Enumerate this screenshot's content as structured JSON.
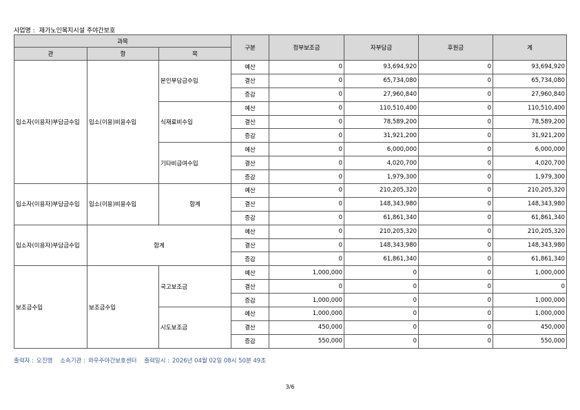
{
  "header": {
    "label": "사업명 :",
    "name": "재가노인복지시설 주야간보호"
  },
  "table": {
    "columns": {
      "subject": "과목",
      "gwan": "관",
      "hang": "항",
      "mok": "목",
      "type": "구분",
      "gov": "정부보조금",
      "self": "자부담금",
      "support": "후원금",
      "total": "계"
    },
    "blocks": [
      {
        "gwan": "입소자(이용자)부담금수입",
        "hang": "입소(이용)비용수입",
        "items": [
          {
            "mok": "본인부담금수입",
            "rows": [
              [
                "예산",
                "0",
                "93,694,920",
                "0",
                "93,694,920"
              ],
              [
                "결산",
                "0",
                "65,734,080",
                "0",
                "65,734,080"
              ],
              [
                "증감",
                "0",
                "27,960,840",
                "0",
                "27,960,840"
              ]
            ]
          },
          {
            "mok": "식재료비수입",
            "rows": [
              [
                "예산",
                "0",
                "110,510,400",
                "0",
                "110,510,400"
              ],
              [
                "결산",
                "0",
                "78,589,200",
                "0",
                "78,589,200"
              ],
              [
                "증감",
                "0",
                "31,921,200",
                "0",
                "31,921,200"
              ]
            ]
          },
          {
            "mok": "기타비급여수입",
            "rows": [
              [
                "예산",
                "0",
                "6,000,000",
                "0",
                "6,000,000"
              ],
              [
                "결산",
                "0",
                "4,020,700",
                "0",
                "4,020,700"
              ],
              [
                "증감",
                "0",
                "1,979,300",
                "0",
                "1,979,300"
              ]
            ]
          }
        ]
      },
      {
        "gwan": "입소자(이용자)부담금수입",
        "hang": "입소(이용)비용수입",
        "items": [
          {
            "mok": "합계",
            "rows": [
              [
                "예산",
                "0",
                "210,205,320",
                "0",
                "210,205,320"
              ],
              [
                "결산",
                "0",
                "148,343,980",
                "0",
                "148,343,980"
              ],
              [
                "증감",
                "0",
                "61,861,340",
                "0",
                "61,861,340"
              ]
            ]
          }
        ]
      },
      {
        "gwan": "입소자(이용자)부담금수입",
        "label": "합계",
        "items": [
          {
            "rows": [
              [
                "예산",
                "0",
                "210,205,320",
                "0",
                "210,205,320"
              ],
              [
                "결산",
                "0",
                "148,343,980",
                "0",
                "148,343,980"
              ],
              [
                "증감",
                "0",
                "61,861,340",
                "0",
                "61,861,340"
              ]
            ]
          }
        ]
      },
      {
        "gwan": "보조금수입",
        "hang": "보조금수입",
        "items": [
          {
            "mok": "국고보조금",
            "rows": [
              [
                "예산",
                "1,000,000",
                "0",
                "0",
                "1,000,000"
              ],
              [
                "결산",
                "0",
                "0",
                "0",
                "0"
              ],
              [
                "증감",
                "1,000,000",
                "0",
                "0",
                "1,000,000"
              ]
            ]
          },
          {
            "mok": "시도보조금",
            "rows": [
              [
                "예산",
                "1,000,000",
                "0",
                "0",
                "1,000,000"
              ],
              [
                "결산",
                "450,000",
                "0",
                "0",
                "450,000"
              ],
              [
                "증감",
                "550,000",
                "0",
                "0",
                "550,000"
              ]
            ]
          }
        ]
      }
    ]
  },
  "footer": {
    "printer_label": "출력자 :",
    "printer": "오진영",
    "org_label": "소속기관 :",
    "org": "와우주야간보호센터",
    "time_label": "출력일시 :",
    "time": "2026년 04월 02일 08시 50분 49초"
  },
  "page": "3/6"
}
